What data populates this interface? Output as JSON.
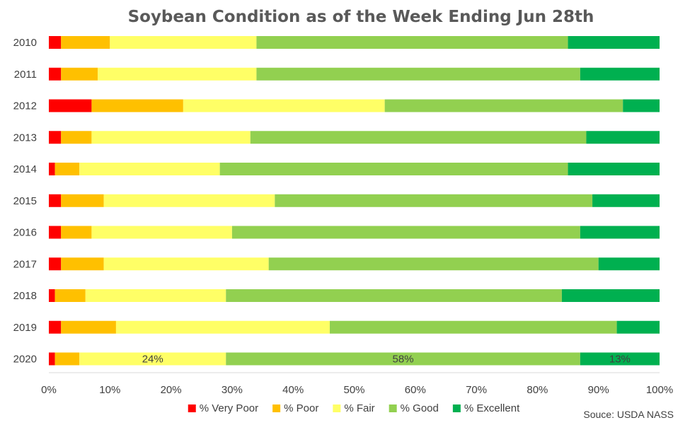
{
  "chart_data": {
    "type": "bar",
    "orientation": "horizontal",
    "stacked": "percent",
    "title": "Soybean Condition as of the Week Ending Jun 28th",
    "categories": [
      "2010",
      "2011",
      "2012",
      "2013",
      "2014",
      "2015",
      "2016",
      "2017",
      "2018",
      "2019",
      "2020"
    ],
    "series": [
      {
        "name": "% Very Poor",
        "color": "#ff0000",
        "values": [
          2,
          2,
          7,
          2,
          1,
          2,
          2,
          2,
          1,
          2,
          1
        ]
      },
      {
        "name": "% Poor",
        "color": "#ffc000",
        "values": [
          8,
          6,
          15,
          5,
          4,
          7,
          5,
          7,
          5,
          9,
          4
        ]
      },
      {
        "name": "% Fair",
        "color": "#ffff66",
        "values": [
          24,
          26,
          33,
          26,
          23,
          28,
          23,
          27,
          23,
          35,
          24
        ]
      },
      {
        "name": "% Good",
        "color": "#92d050",
        "values": [
          51,
          53,
          39,
          55,
          57,
          52,
          57,
          54,
          55,
          47,
          58
        ]
      },
      {
        "name": "% Excellent",
        "color": "#00b050",
        "values": [
          15,
          13,
          6,
          12,
          15,
          11,
          13,
          10,
          16,
          7,
          13
        ]
      }
    ],
    "data_labels": [
      {
        "category": "2020",
        "series": "% Fair",
        "text": "24%"
      },
      {
        "category": "2020",
        "series": "% Good",
        "text": "58%"
      },
      {
        "category": "2020",
        "series": "% Excellent",
        "text": "13%"
      }
    ],
    "xlim": [
      0,
      100
    ],
    "xticks": [
      "0%",
      "10%",
      "20%",
      "30%",
      "40%",
      "50%",
      "60%",
      "70%",
      "80%",
      "90%",
      "100%"
    ],
    "grid": false,
    "legend_position": "bottom",
    "source": "Souce: USDA NASS"
  }
}
